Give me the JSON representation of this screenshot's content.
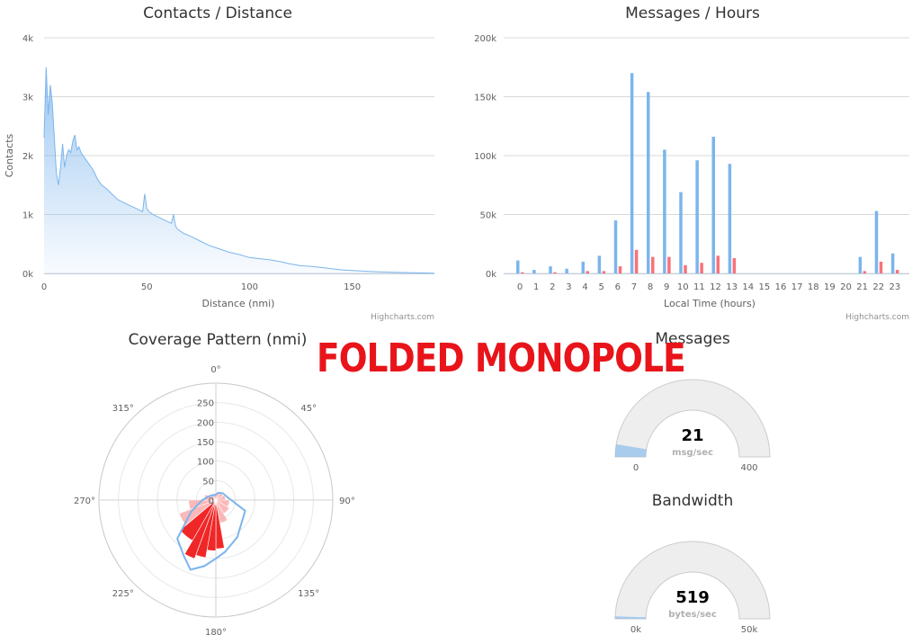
{
  "overlay_text": "FOLDED MONOPOLE",
  "credits": "Highcharts.com",
  "chart_data": [
    {
      "type": "area",
      "title": "Contacts / Distance",
      "xlabel": "Distance (nmi)",
      "ylabel": "Contacts",
      "xlim": [
        0,
        190
      ],
      "ylim": [
        0,
        4000
      ],
      "x_ticks": [
        0,
        50,
        100,
        150
      ],
      "y_ticks": [
        0,
        1000,
        2000,
        3000,
        4000
      ],
      "y_tick_labels": [
        "0k",
        "1k",
        "2k",
        "3k",
        "4k"
      ],
      "grid": true,
      "color": "#7cb5ec",
      "x": [
        0,
        1,
        2,
        3,
        4,
        5,
        6,
        7,
        8,
        9,
        10,
        11,
        12,
        13,
        14,
        15,
        16,
        17,
        18,
        19,
        20,
        22,
        24,
        26,
        28,
        30,
        33,
        36,
        39,
        42,
        45,
        48,
        49,
        50,
        51,
        53,
        56,
        59,
        62,
        63,
        64,
        65,
        68,
        72,
        76,
        80,
        85,
        90,
        95,
        100,
        105,
        110,
        115,
        120,
        125,
        130,
        135,
        140,
        145,
        150,
        155,
        160,
        165,
        170,
        175,
        180,
        185,
        190
      ],
      "values": [
        2300,
        3500,
        2700,
        3200,
        2900,
        2300,
        1700,
        1500,
        1800,
        2200,
        1800,
        2000,
        2100,
        2050,
        2250,
        2350,
        2100,
        2150,
        2050,
        2000,
        1950,
        1850,
        1750,
        1600,
        1500,
        1450,
        1350,
        1250,
        1200,
        1150,
        1100,
        1050,
        1350,
        1100,
        1050,
        1000,
        950,
        900,
        850,
        1000,
        800,
        750,
        680,
        620,
        550,
        480,
        420,
        360,
        320,
        270,
        250,
        230,
        200,
        160,
        130,
        120,
        100,
        80,
        60,
        50,
        40,
        30,
        25,
        20,
        15,
        10,
        8,
        5
      ]
    },
    {
      "type": "bar",
      "title": "Messages / Hours",
      "xlabel": "Local Time (hours)",
      "ylabel": "",
      "ylim": [
        0,
        200000
      ],
      "y_ticks": [
        0,
        50000,
        100000,
        150000,
        200000
      ],
      "y_tick_labels": [
        "0k",
        "50k",
        "100k",
        "150k",
        "200k"
      ],
      "grid": true,
      "categories": [
        "0",
        "1",
        "2",
        "3",
        "4",
        "5",
        "6",
        "7",
        "8",
        "9",
        "10",
        "11",
        "12",
        "13",
        "14",
        "15",
        "16",
        "17",
        "18",
        "19",
        "20",
        "21",
        "22",
        "23"
      ],
      "series": [
        {
          "color": "#7cb5ec",
          "values": [
            11000,
            3000,
            6000,
            4000,
            10000,
            15000,
            45000,
            170000,
            154000,
            105000,
            69000,
            96000,
            116000,
            93000,
            0,
            0,
            0,
            0,
            0,
            0,
            0,
            14000,
            53000,
            17000
          ]
        },
        {
          "color": "#f7727a",
          "values": [
            1000,
            0,
            1000,
            0,
            2000,
            2000,
            6000,
            20000,
            14000,
            14000,
            7000,
            9000,
            15000,
            13000,
            0,
            0,
            0,
            0,
            0,
            0,
            0,
            2000,
            10000,
            3000
          ]
        }
      ]
    },
    {
      "type": "polar",
      "title": "Coverage Pattern (nmi)",
      "angle_ticks": [
        "0°",
        "45°",
        "90°",
        "135°",
        "180°",
        "225°",
        "270°",
        "315°"
      ],
      "radial_ticks": [
        0,
        50,
        100,
        150,
        200,
        250
      ],
      "rmax": 300,
      "outline": {
        "color": "#7cb5ec",
        "angles": [
          0,
          20,
          45,
          75,
          110,
          150,
          170,
          180,
          190,
          200,
          210,
          225,
          245,
          270,
          300,
          330,
          350
        ],
        "values": [
          15,
          20,
          25,
          30,
          80,
          110,
          135,
          150,
          172,
          190,
          165,
          140,
          70,
          35,
          20,
          15,
          12
        ]
      },
      "sectors": {
        "angles": [
          0,
          30,
          60,
          90,
          120,
          150,
          170,
          180,
          190,
          200,
          210,
          230,
          250,
          270,
          300,
          330
        ],
        "values": [
          20,
          22,
          25,
          35,
          40,
          60,
          125,
          130,
          150,
          160,
          120,
          100,
          70,
          30,
          20,
          18
        ]
      }
    },
    {
      "type": "gauge",
      "title": "Messages",
      "value": 21,
      "value_label": "21",
      "unit": "msg/sec",
      "min": 0,
      "max": 400,
      "min_label": "0",
      "max_label": "400",
      "color": "#7cb5ec"
    },
    {
      "type": "gauge",
      "title": "Bandwidth",
      "value": 519,
      "value_label": "519",
      "unit": "bytes/sec",
      "min": 0,
      "max": 50000,
      "min_label": "0k",
      "max_label": "50k",
      "color": "#7cb5ec"
    }
  ]
}
